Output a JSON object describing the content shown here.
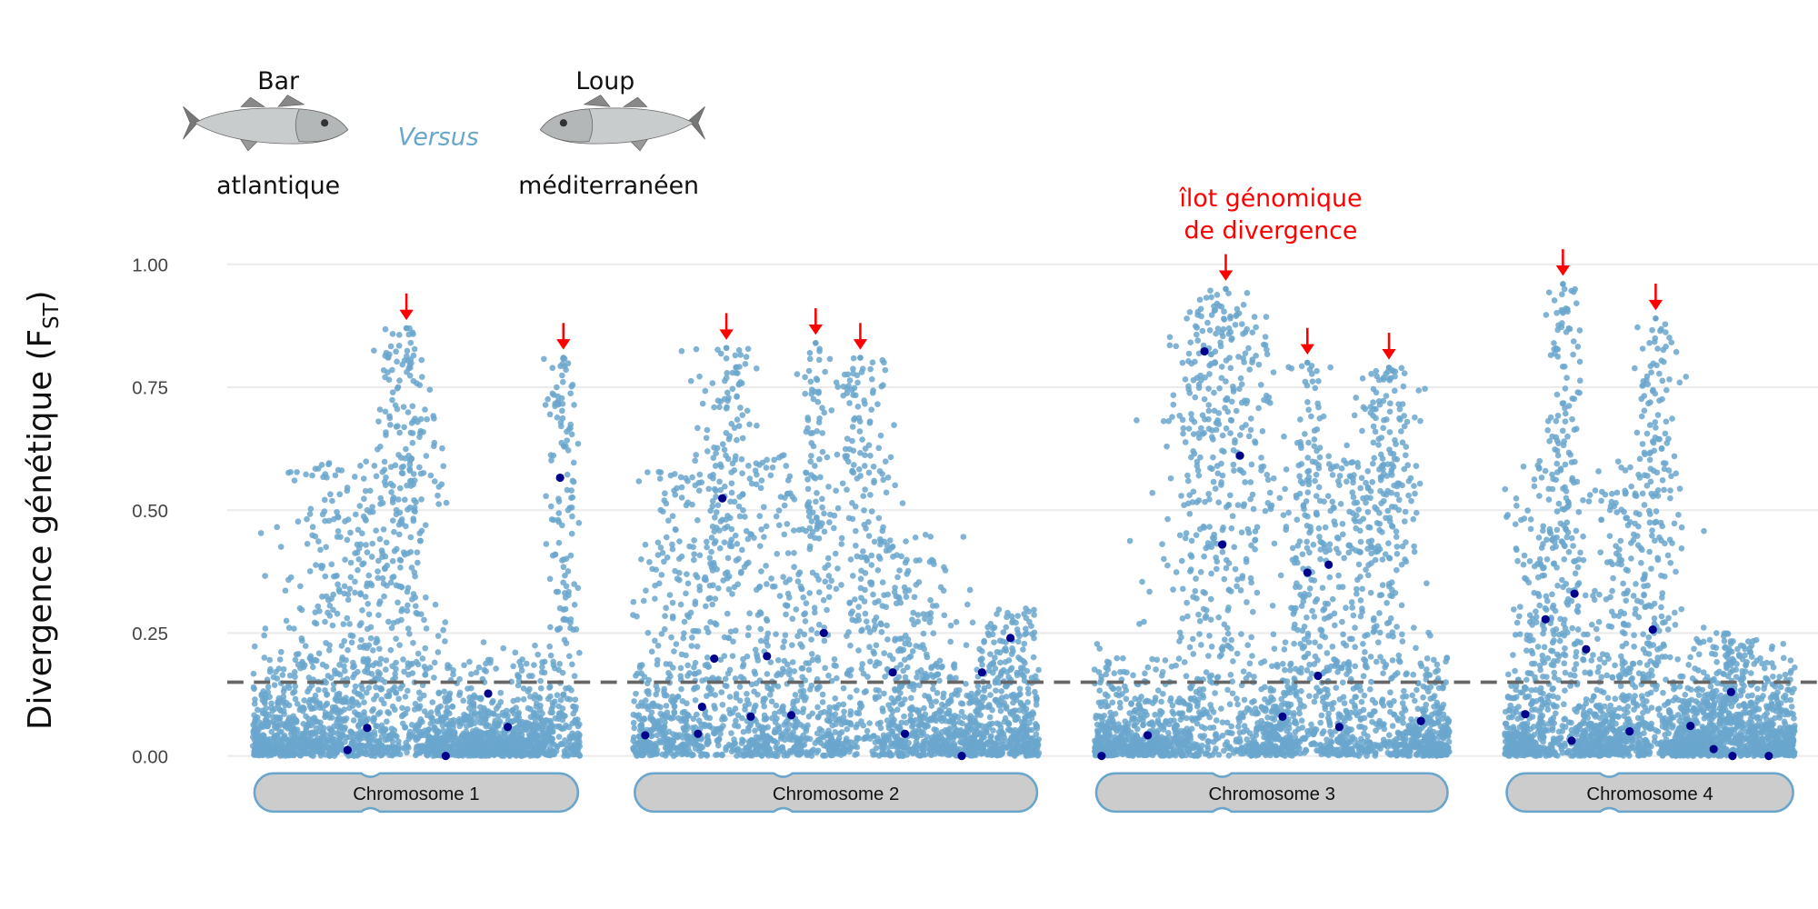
{
  "header": {
    "species_left_top": "Bar",
    "species_left_bottom": "atlantique",
    "versus": "Versus",
    "species_right_top": "Loup",
    "species_right_bottom": "méditerranéen",
    "fish_icon": "sea-bass-fish"
  },
  "annotation": {
    "line1": "îlot génomique",
    "line2": "de divergence"
  },
  "colors": {
    "points": "#6aa6cc",
    "highlight_points": "#00008b",
    "arrows": "#ff0000",
    "threshold": "#666666",
    "grid": "#ebebeb",
    "strip_fill": "#cccccc",
    "strip_border": "#6aa6cc",
    "versus": "#6aa6cc",
    "annotation": "#ff0000"
  },
  "chart_data": {
    "type": "scatter",
    "title": "",
    "xlabel": "",
    "ylabel": "Divergence génétique (F",
    "ylabel_sub": "ST",
    "ylabel_close": ")",
    "ylim": [
      0,
      1
    ],
    "yticks": [
      "0.00",
      "0.25",
      "0.50",
      "0.75",
      "1.00"
    ],
    "ytick_values": [
      0,
      0.25,
      0.5,
      0.75,
      1.0
    ],
    "grid": "horizontal",
    "threshold": 0.15,
    "x_unit": "relative position along chromosome (%)",
    "chromosomes": [
      {
        "label": "Chromosome 1",
        "centromere": 36,
        "peaks": [
          {
            "pos": 47,
            "fst": 0.87,
            "width": 5
          },
          {
            "pos": 95,
            "fst": 0.81,
            "width": 3
          }
        ],
        "broad": [
          {
            "pos": 30,
            "fst": 0.6,
            "width": 9
          }
        ],
        "highlighted": [
          [
            29,
            0.012
          ],
          [
            35,
            0.057
          ],
          [
            59,
            0.0
          ],
          [
            72,
            0.127
          ],
          [
            78,
            0.059
          ],
          [
            94,
            0.566
          ]
        ]
      },
      {
        "label": "Chromosome 2",
        "centromere": 37,
        "peaks": [
          {
            "pos": 23,
            "fst": 0.83,
            "width": 4
          },
          {
            "pos": 45,
            "fst": 0.84,
            "width": 2
          },
          {
            "pos": 56,
            "fst": 0.81,
            "width": 4
          }
        ],
        "broad": [
          {
            "pos": 15,
            "fst": 0.6,
            "width": 9
          },
          {
            "pos": 38,
            "fst": 0.62,
            "width": 6
          },
          {
            "pos": 66,
            "fst": 0.45,
            "width": 7
          },
          {
            "pos": 93,
            "fst": 0.3,
            "width": 5
          }
        ],
        "highlighted": [
          [
            3,
            0.042
          ],
          [
            16,
            0.045
          ],
          [
            17,
            0.1
          ],
          [
            20,
            0.198
          ],
          [
            22,
            0.524
          ],
          [
            29,
            0.08
          ],
          [
            33,
            0.203
          ],
          [
            39,
            0.083
          ],
          [
            47,
            0.25
          ],
          [
            64,
            0.17
          ],
          [
            67,
            0.045
          ],
          [
            81,
            0.0
          ],
          [
            86,
            0.17
          ],
          [
            93,
            0.24
          ]
        ]
      },
      {
        "label": "Chromosome 3",
        "centromere": 36,
        "peaks": [
          {
            "pos": 37,
            "fst": 0.95,
            "width": 6
          },
          {
            "pos": 60,
            "fst": 0.8,
            "width": 3
          },
          {
            "pos": 83,
            "fst": 0.79,
            "width": 4
          }
        ],
        "broad": [
          {
            "pos": 32,
            "fst": 0.9,
            "width": 8
          },
          {
            "pos": 70,
            "fst": 0.6,
            "width": 10
          }
        ],
        "highlighted": [
          [
            2,
            0.0
          ],
          [
            15,
            0.042
          ],
          [
            31,
            0.823
          ],
          [
            36,
            0.43
          ],
          [
            41,
            0.611
          ],
          [
            53,
            0.08
          ],
          [
            60,
            0.373
          ],
          [
            63,
            0.163
          ],
          [
            66,
            0.389
          ],
          [
            69,
            0.059
          ],
          [
            92,
            0.071
          ]
        ]
      },
      {
        "label": "Chromosome 4",
        "centromere": 36,
        "peaks": [
          {
            "pos": 20,
            "fst": 0.96,
            "width": 3
          },
          {
            "pos": 52,
            "fst": 0.89,
            "width": 3
          }
        ],
        "broad": [
          {
            "pos": 15,
            "fst": 0.6,
            "width": 8
          },
          {
            "pos": 45,
            "fst": 0.6,
            "width": 8
          },
          {
            "pos": 78,
            "fst": 0.25,
            "width": 6
          }
        ],
        "highlighted": [
          [
            7,
            0.085
          ],
          [
            14,
            0.278
          ],
          [
            23,
            0.031
          ],
          [
            24,
            0.33
          ],
          [
            28,
            0.217
          ],
          [
            43,
            0.05
          ],
          [
            51,
            0.257
          ],
          [
            64,
            0.061
          ],
          [
            72,
            0.014
          ],
          [
            78,
            0.13
          ],
          [
            78.5,
            0.0
          ],
          [
            91,
            0.0
          ]
        ]
      }
    ]
  }
}
